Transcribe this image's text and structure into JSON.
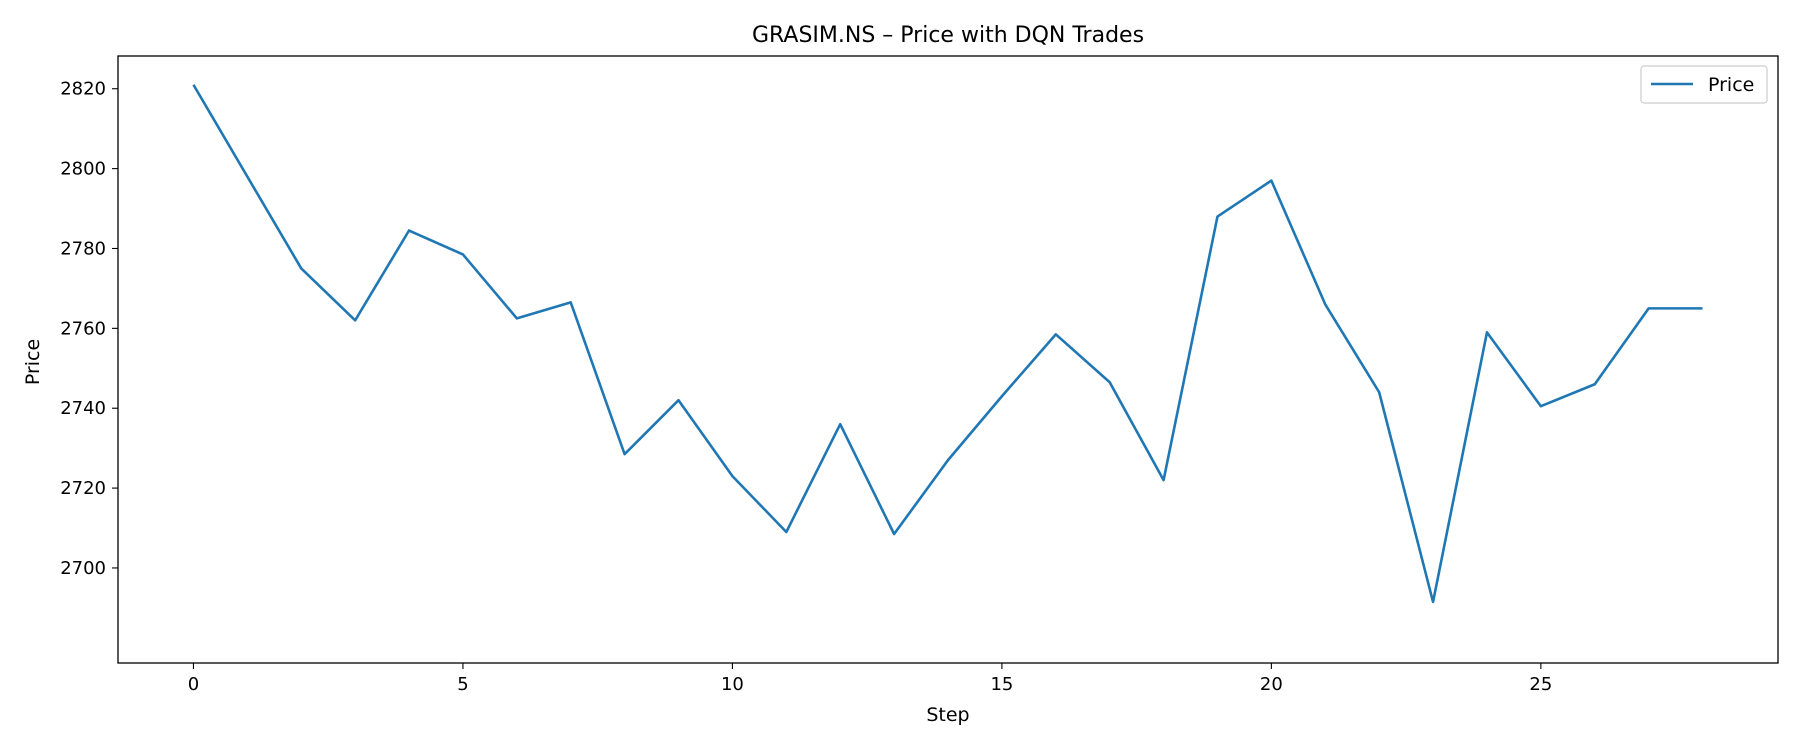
{
  "chart_data": {
    "type": "line",
    "title": "GRASIM.NS – Price with DQN Trades",
    "xlabel": "Step",
    "ylabel": "Price",
    "x": [
      0,
      1,
      2,
      3,
      4,
      5,
      6,
      7,
      8,
      9,
      10,
      11,
      12,
      13,
      14,
      15,
      16,
      17,
      18,
      19,
      20,
      21,
      22,
      23,
      24,
      25,
      26,
      27,
      28
    ],
    "series": [
      {
        "name": "Price",
        "color": "#1f77b4",
        "values": [
          2821,
          2798,
          2775,
          2762,
          2784.5,
          2778.5,
          2762.5,
          2766.5,
          2728.5,
          2742,
          2723,
          2709,
          2736,
          2708.5,
          2727,
          2743,
          2758.5,
          2746.5,
          2722,
          2788,
          2797,
          2766,
          2744,
          2691.5,
          2759,
          2740.5,
          2746,
          2765,
          2765
        ]
      }
    ],
    "xticks": [
      0,
      5,
      10,
      15,
      20,
      25
    ],
    "yticks": [
      2700,
      2720,
      2740,
      2760,
      2780,
      2800,
      2820
    ],
    "xlim": [
      -1.4,
      29.4
    ],
    "ylim": [
      2676.2,
      2828.2
    ],
    "grid": false,
    "legend_position": "top-right"
  }
}
